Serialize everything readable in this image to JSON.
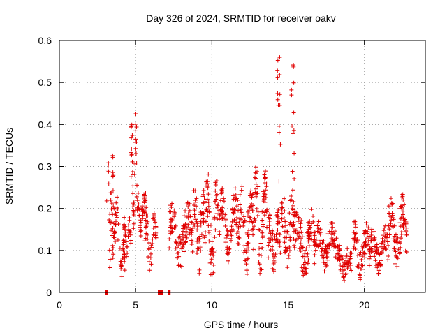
{
  "chart_data": {
    "type": "scatter",
    "title": "Day 326 of 2024, SRMTID for receiver oakv",
    "xlabel": "GPS time / hours",
    "ylabel": "SRMTID / TECUs",
    "xlim": [
      0,
      24
    ],
    "ylim": [
      0,
      0.6
    ],
    "x_ticks": [
      0,
      5,
      10,
      15,
      20
    ],
    "x_tick_labels": [
      "0",
      "5",
      "10",
      "15",
      "20"
    ],
    "y_ticks": [
      0,
      0.1,
      0.2,
      0.3,
      0.4,
      0.5,
      0.6
    ],
    "y_tick_labels": [
      "0",
      "0.1",
      "0.2",
      "0.3",
      "0.4",
      "0.5",
      "0.6"
    ],
    "grid": true,
    "marker": "+",
    "color": "#e00000",
    "zero_points": [
      3.1,
      6.55,
      6.65,
      6.7,
      7.2
    ],
    "segments": [
      {
        "x0": 3.1,
        "x1": 3.6,
        "count": 22,
        "base": 0.2,
        "amp": 0.12,
        "noise": 0.05
      },
      {
        "x0": 3.3,
        "x1": 3.9,
        "count": 40,
        "base": 0.15,
        "amp": 0.05,
        "noise": 0.04
      },
      {
        "x0": 3.9,
        "x1": 4.3,
        "count": 25,
        "base": 0.08,
        "amp": 0.04,
        "noise": 0.02
      },
      {
        "x0": 4.2,
        "x1": 4.7,
        "count": 30,
        "base": 0.13,
        "amp": 0.03,
        "noise": 0.02
      },
      {
        "x0": 4.7,
        "x1": 5.1,
        "count": 40,
        "base": 0.28,
        "amp": 0.1,
        "noise": 0.05
      },
      {
        "x0": 5.1,
        "x1": 5.7,
        "count": 45,
        "base": 0.19,
        "amp": 0.03,
        "noise": 0.03
      },
      {
        "x0": 5.6,
        "x1": 6.4,
        "count": 40,
        "base": 0.12,
        "amp": 0.04,
        "noise": 0.03
      },
      {
        "x0": 7.2,
        "x1": 8.8,
        "count": 110,
        "base": 0.14,
        "amp": 0.04,
        "noise": 0.04
      },
      {
        "x0": 8.8,
        "x1": 9.6,
        "count": 60,
        "base": 0.15,
        "amp": 0.07,
        "noise": 0.05
      },
      {
        "x0": 9.6,
        "x1": 10.5,
        "count": 70,
        "base": 0.16,
        "amp": 0.08,
        "noise": 0.05
      },
      {
        "x0": 10.5,
        "x1": 11.8,
        "count": 90,
        "base": 0.16,
        "amp": 0.05,
        "noise": 0.04
      },
      {
        "x0": 11.8,
        "x1": 12.8,
        "count": 70,
        "base": 0.15,
        "amp": 0.06,
        "noise": 0.05
      },
      {
        "x0": 12.8,
        "x1": 13.7,
        "count": 65,
        "base": 0.17,
        "amp": 0.08,
        "noise": 0.05
      },
      {
        "x0": 13.7,
        "x1": 14.5,
        "count": 60,
        "base": 0.12,
        "amp": 0.04,
        "noise": 0.04
      },
      {
        "x0": 14.3,
        "x1": 14.5,
        "count": 14,
        "base": 0.4,
        "amp": 0.12,
        "noise": 0.06
      },
      {
        "x0": 14.5,
        "x1": 15.5,
        "count": 70,
        "base": 0.15,
        "amp": 0.05,
        "noise": 0.05
      },
      {
        "x0": 15.2,
        "x1": 15.4,
        "count": 14,
        "base": 0.38,
        "amp": 0.12,
        "noise": 0.05
      },
      {
        "x0": 15.5,
        "x1": 16.8,
        "count": 90,
        "base": 0.12,
        "amp": 0.04,
        "noise": 0.04
      },
      {
        "x0": 16.8,
        "x1": 18.2,
        "count": 90,
        "base": 0.11,
        "amp": 0.03,
        "noise": 0.03
      },
      {
        "x0": 18.2,
        "x1": 19.2,
        "count": 70,
        "base": 0.07,
        "amp": 0.02,
        "noise": 0.025
      },
      {
        "x0": 19.2,
        "x1": 20.4,
        "count": 80,
        "base": 0.1,
        "amp": 0.04,
        "noise": 0.03
      },
      {
        "x0": 20.4,
        "x1": 21.6,
        "count": 80,
        "base": 0.1,
        "amp": 0.03,
        "noise": 0.03
      },
      {
        "x0": 21.6,
        "x1": 22.8,
        "count": 85,
        "base": 0.14,
        "amp": 0.06,
        "noise": 0.04
      }
    ]
  }
}
